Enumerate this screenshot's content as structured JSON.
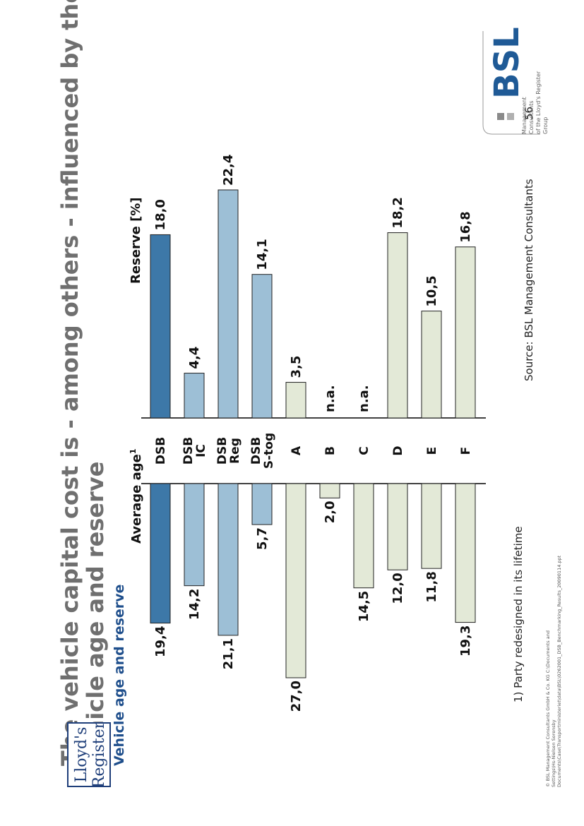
{
  "title": {
    "line1": "The vehicle capital cost is - among others - influenced by the",
    "line2": "vehicle age and reserve"
  },
  "subtitle": "Vehicle age and reserve",
  "panels": {
    "age_header": "Average age",
    "age_superscript": "1",
    "reserve_header": "Reserve [%]"
  },
  "footnote": "1)  Party redesigned in its lifetime",
  "source": "Source: BSL Management Consultants",
  "page_number": "56",
  "copyright": "© BSL Management Consultants GmbH & Co. KG  C:\\Documents and Settings\\Hs-Nielsen Sorensby  Documents\\Case\\Transportministeriet\\data\\BSL\\0262001_DSB_Benchmarking_Results_20090114.ppt",
  "logos": {
    "lloyds_line1": "Lloyd's",
    "lloyds_line2": "Register",
    "bsl_mark": "BSL",
    "bsl_tagline1": "Management Consultants",
    "bsl_tagline2": "of the Lloyd's Register Group"
  },
  "colors": {
    "title": "#6f6f6f",
    "subtitle": "#1f4f8c",
    "dsb_dark": "#3d78a8",
    "dsb_light": "#9dbfd6",
    "others": "#e3e9d7"
  },
  "chart_data": {
    "type": "bar",
    "orientation": "butterfly",
    "categories": [
      {
        "lines": [
          "DSB"
        ],
        "color": "dsb_dark"
      },
      {
        "lines": [
          "DSB",
          "IC"
        ],
        "color": "dsb_light"
      },
      {
        "lines": [
          "DSB",
          "Reg"
        ],
        "color": "dsb_light"
      },
      {
        "lines": [
          "DSB",
          "S-tog"
        ],
        "color": "dsb_light"
      },
      {
        "lines": [
          "A"
        ],
        "color": "others"
      },
      {
        "lines": [
          "B"
        ],
        "color": "others"
      },
      {
        "lines": [
          "C"
        ],
        "color": "others"
      },
      {
        "lines": [
          "D"
        ],
        "color": "others"
      },
      {
        "lines": [
          "E"
        ],
        "color": "others"
      },
      {
        "lines": [
          "F"
        ],
        "color": "others"
      }
    ],
    "series": [
      {
        "name": "Average age",
        "values": [
          19.4,
          14.2,
          21.1,
          5.7,
          27.0,
          2.0,
          14.5,
          12.0,
          11.8,
          19.3
        ],
        "labels": [
          "19,4",
          "14,2",
          "21,1",
          "5,7",
          "27,0",
          "2,0",
          "14,5",
          "12,0",
          "11,8",
          "19,3"
        ]
      },
      {
        "name": "Reserve [%]",
        "values": [
          18.0,
          4.4,
          22.4,
          14.1,
          3.5,
          null,
          null,
          18.2,
          10.5,
          16.8
        ],
        "labels": [
          "18,0",
          "4,4",
          "22,4",
          "14,1",
          "3,5",
          "n.a.",
          "n.a.",
          "18,2",
          "10,5",
          "16,8"
        ]
      }
    ],
    "age_max": 27.0,
    "reserve_max": 22.4
  }
}
